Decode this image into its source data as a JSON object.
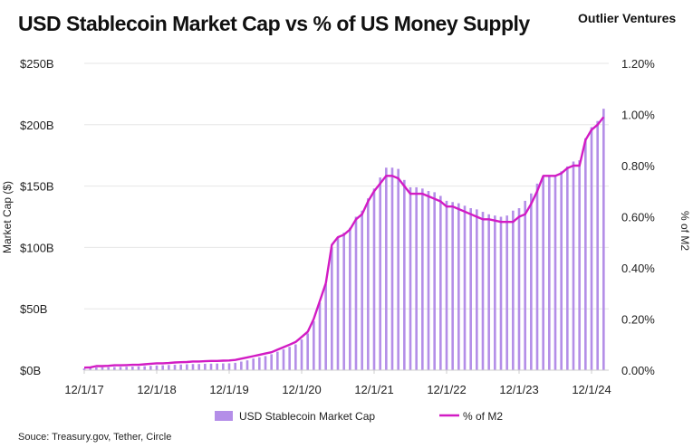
{
  "title": "USD Stablecoin Market Cap vs % of US Money Supply",
  "brand": "Outlier Ventures",
  "source": "Souce: Treasury.gov, Tether, Circle",
  "colors": {
    "bars": "#b48ee8",
    "line": "#d21bc4",
    "grid": "#e6e6e6"
  },
  "chart_data": {
    "type": "bar+line",
    "title": "USD Stablecoin Market Cap vs % of US Money Supply",
    "ylabel": "Market Cap ($)",
    "y2label": "% of M2",
    "ylim": [
      0,
      250
    ],
    "y2lim": [
      0,
      1.2
    ],
    "yticks": [
      "$0B",
      "$50B",
      "$100B",
      "$150B",
      "$200B",
      "$250B"
    ],
    "y2ticks": [
      "0.00%",
      "0.20%",
      "0.40%",
      "0.60%",
      "0.80%",
      "1.00%",
      "1.20%"
    ],
    "xticks": [
      "12/1/17",
      "12/1/18",
      "12/1/19",
      "12/1/20",
      "12/1/21",
      "12/1/22",
      "12/1/23",
      "12/1/24"
    ],
    "x_start": "2017-12",
    "x_interval": "monthly",
    "grid": true,
    "legend_position": "bottom",
    "series": [
      {
        "name": "USD Stablecoin Market Cap",
        "type": "bar",
        "unit": "$B",
        "values": [
          1.4,
          1.6,
          2.2,
          2.3,
          2.4,
          2.6,
          2.7,
          2.8,
          2.9,
          3.0,
          3.2,
          3.5,
          3.8,
          4.0,
          4.2,
          4.4,
          4.6,
          4.8,
          5.0,
          5.0,
          5.2,
          5.3,
          5.4,
          5.5,
          5.6,
          6.0,
          7.0,
          8.0,
          9.5,
          10.5,
          11.5,
          13,
          15,
          17,
          19,
          21,
          25,
          30,
          40,
          55,
          70,
          100,
          108,
          112,
          116,
          125,
          130,
          140,
          148,
          157,
          165,
          165,
          164,
          155,
          149,
          149,
          148,
          146,
          145,
          142,
          138,
          137,
          136,
          134,
          132,
          131,
          129,
          127,
          126,
          125,
          126,
          130,
          132,
          138,
          144,
          152,
          158,
          158,
          159,
          162,
          166,
          170,
          171,
          189,
          198,
          203,
          213
        ]
      },
      {
        "name": "% of M2",
        "type": "line",
        "unit": "%",
        "values": [
          0.01,
          0.011,
          0.016,
          0.016,
          0.017,
          0.019,
          0.019,
          0.02,
          0.021,
          0.021,
          0.023,
          0.025,
          0.027,
          0.027,
          0.028,
          0.03,
          0.031,
          0.032,
          0.034,
          0.034,
          0.035,
          0.036,
          0.036,
          0.037,
          0.038,
          0.04,
          0.045,
          0.05,
          0.055,
          0.06,
          0.065,
          0.07,
          0.08,
          0.09,
          0.1,
          0.11,
          0.13,
          0.15,
          0.2,
          0.27,
          0.34,
          0.49,
          0.52,
          0.53,
          0.55,
          0.59,
          0.61,
          0.66,
          0.7,
          0.73,
          0.76,
          0.76,
          0.75,
          0.72,
          0.69,
          0.69,
          0.69,
          0.68,
          0.67,
          0.66,
          0.64,
          0.64,
          0.63,
          0.62,
          0.61,
          0.6,
          0.59,
          0.59,
          0.585,
          0.58,
          0.58,
          0.58,
          0.6,
          0.61,
          0.65,
          0.7,
          0.76,
          0.76,
          0.76,
          0.77,
          0.79,
          0.8,
          0.8,
          0.9,
          0.94,
          0.96,
          0.99
        ]
      }
    ]
  }
}
